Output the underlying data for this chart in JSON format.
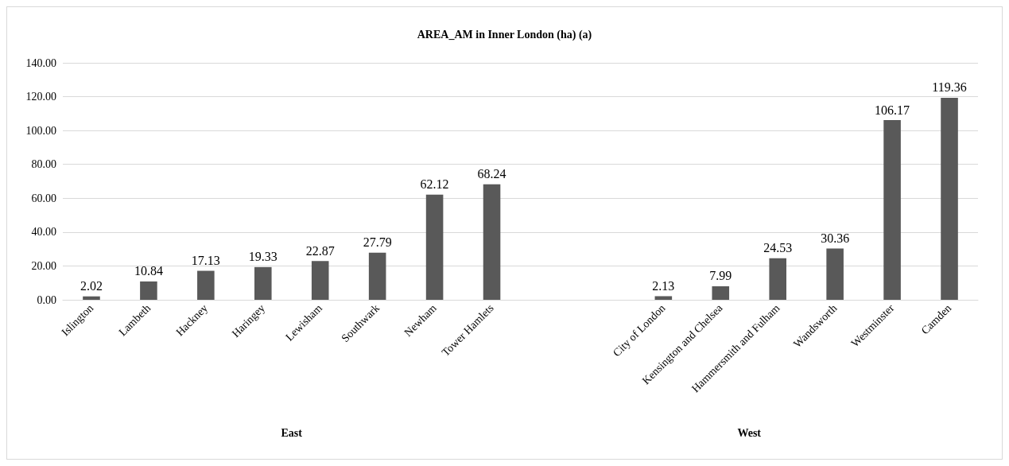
{
  "chart_data": {
    "type": "bar",
    "title": "AREA_AM in Inner London (ha) (a)",
    "categories": [
      "Islington",
      "Lambeth",
      "Hackney",
      "Haringey",
      "Lewisham",
      "Southwark",
      "Newham",
      "Tower Hamlets",
      null,
      null,
      "City of London",
      "Kensington and Chelsea",
      "Hammersmith and Fulham",
      "Wandsworth",
      "Westminster",
      "Camden"
    ],
    "values": [
      2.02,
      10.84,
      17.13,
      19.33,
      22.87,
      27.79,
      62.12,
      68.24,
      null,
      null,
      2.13,
      7.99,
      24.53,
      30.36,
      106.17,
      119.36
    ],
    "color": "#595959",
    "data_labels": true,
    "grid": "y",
    "ylim": [
      0,
      140
    ],
    "yticks": [
      {
        "value": 0,
        "label": "0.00"
      },
      {
        "value": 20,
        "label": "20.00"
      },
      {
        "value": 40,
        "label": "40.00"
      },
      {
        "value": 60,
        "label": "60.00"
      },
      {
        "value": 80,
        "label": "80.00"
      },
      {
        "value": 100,
        "label": "100.00"
      },
      {
        "value": 120,
        "label": "120.00"
      },
      {
        "value": 140,
        "label": "140.00"
      }
    ],
    "annotations": [
      "East",
      "West"
    ]
  }
}
